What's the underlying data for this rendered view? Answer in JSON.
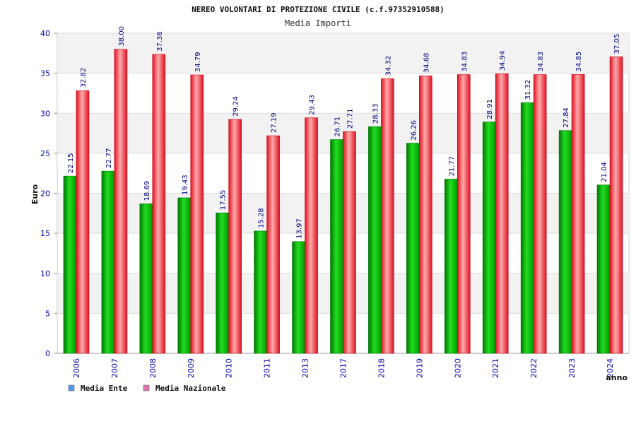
{
  "chart_data": {
    "type": "bar",
    "title": "NEREO VOLONTARI DI PROTEZIONE CIVILE (c.f.97352910588)",
    "subtitle": "Media Importi",
    "xlabel": "anno",
    "ylabel": "Euro",
    "ylim": [
      0,
      40
    ],
    "yticks": [
      0,
      5,
      10,
      15,
      20,
      25,
      30,
      35,
      40
    ],
    "grid": true,
    "legend_position": "bottom-left",
    "categories": [
      "2006",
      "2007",
      "2008",
      "2009",
      "2010",
      "2011",
      "2013",
      "2017",
      "2018",
      "2019",
      "2020",
      "2021",
      "2022",
      "2023",
      "2024"
    ],
    "series": [
      {
        "name": "Media Ente",
        "color": "#00aa00",
        "legend_color": "#5599ee",
        "values": [
          22.15,
          22.77,
          18.69,
          19.43,
          17.55,
          15.28,
          13.97,
          26.71,
          28.33,
          26.26,
          21.77,
          28.91,
          31.32,
          27.84,
          21.04
        ]
      },
      {
        "name": "Media Nazionale",
        "color": "#ee2233",
        "legend_color": "#dd77aa",
        "values": [
          32.82,
          38.0,
          37.36,
          34.79,
          29.24,
          27.19,
          29.43,
          27.71,
          34.32,
          34.68,
          34.83,
          34.94,
          34.83,
          34.85,
          37.05
        ]
      }
    ],
    "value_labels": [
      [
        "22.15",
        "22.77",
        "18.69",
        "19.43",
        "17.55",
        "15.28",
        "13.97",
        "26.71",
        "28.33",
        "26.26",
        "21.77",
        "28.91",
        "31.32",
        "27.84",
        "21.04"
      ],
      [
        "32.82",
        "38.00",
        "37.36",
        "34.79",
        "29.24",
        "27.19",
        "29.43",
        "27.71",
        "34.32",
        "34.68",
        "34.83",
        "34.94",
        "34.83",
        "34.85",
        "37.05"
      ]
    ]
  }
}
